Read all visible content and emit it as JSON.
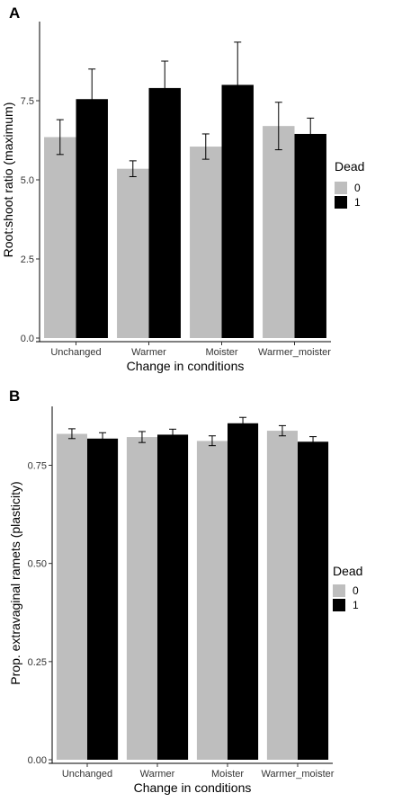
{
  "chart_data": [
    {
      "type": "bar",
      "panel_label": "A",
      "categories": [
        "Unchanged",
        "Warmer",
        "Moister",
        "Warmer_moister"
      ],
      "series": [
        {
          "name": "0",
          "color": "#bebebe",
          "values": [
            6.35,
            5.35,
            6.05,
            6.7
          ],
          "error_low": [
            5.8,
            5.1,
            5.65,
            5.95
          ],
          "error_high": [
            6.9,
            5.6,
            6.45,
            7.45
          ]
        },
        {
          "name": "1",
          "color": "#000000",
          "values": [
            7.55,
            7.9,
            8.0,
            6.45
          ],
          "error_low": [
            6.6,
            7.0,
            6.6,
            5.95
          ],
          "error_high": [
            8.5,
            8.75,
            9.35,
            6.95
          ]
        }
      ],
      "xlabel": "Change in conditions",
      "ylabel": "Root:shoot ratio (maximum)",
      "ylim": [
        0,
        10
      ],
      "yticks": [
        0,
        2.5,
        5,
        7.5
      ],
      "ytick_labels": [
        "0.0",
        "2.5",
        "5.0",
        "7.5"
      ],
      "legend_title": "Dead",
      "legend_position": "right",
      "grid": false
    },
    {
      "type": "bar",
      "panel_label": "B",
      "categories": [
        "Unchanged",
        "Warmer",
        "Moister",
        "Warmer_moister"
      ],
      "series": [
        {
          "name": "0",
          "color": "#bebebe",
          "values": [
            0.83,
            0.822,
            0.812,
            0.838
          ],
          "error_low": [
            0.818,
            0.808,
            0.8,
            0.825
          ],
          "error_high": [
            0.843,
            0.836,
            0.825,
            0.851
          ]
        },
        {
          "name": "1",
          "color": "#000000",
          "values": [
            0.818,
            0.828,
            0.857,
            0.81
          ],
          "error_low": [
            0.803,
            0.814,
            0.842,
            0.797
          ],
          "error_high": [
            0.833,
            0.842,
            0.872,
            0.823
          ]
        }
      ],
      "xlabel": "Change in conditions",
      "ylabel": "Prop. extravaginal ramets (plasticity)",
      "ylim": [
        0,
        0.9
      ],
      "yticks": [
        0,
        0.25,
        0.5,
        0.75
      ],
      "ytick_labels": [
        "0.00",
        "0.25",
        "0.50",
        "0.75"
      ],
      "legend_title": "Dead",
      "legend_position": "right",
      "grid": false
    }
  ]
}
